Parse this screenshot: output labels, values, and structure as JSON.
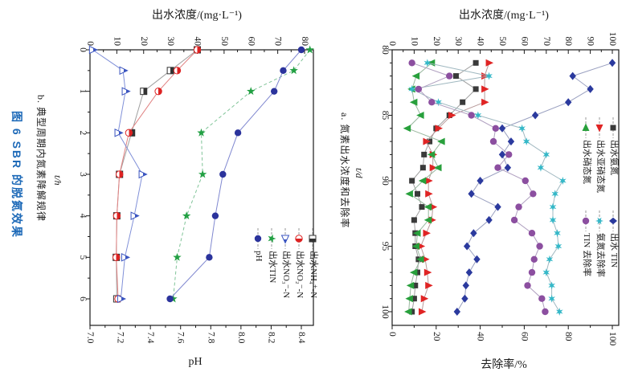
{
  "figure": {
    "caption_main": "图 6  SBR 的脱氮效果",
    "caption_a": "a. 氮素出水浓度和去除率",
    "caption_b": "b. 典型周期内氮素降解规律",
    "caption_color": "#1e6ab8",
    "axis_color": "#1a1a1a",
    "background": "#ffffff"
  },
  "chart_data": [
    {
      "id": "cycle",
      "type": "line",
      "title_top": "出水浓度/(mg·L⁻¹)",
      "xlabel_bottom": "pH",
      "ylabel": "t/h",
      "top_axis": {
        "label": "出水浓度/(mg·L⁻¹)",
        "min": 0,
        "max": 80,
        "ticks": [
          "0",
          "10",
          "20",
          "30",
          "40",
          "50",
          "60",
          "70",
          "80"
        ],
        "minor_step": 5
      },
      "bottom_axis": {
        "label": "pH",
        "min": 7.0,
        "max": 8.4,
        "ticks": [
          "7.0",
          "7.2",
          "7.4",
          "7.6",
          "7.8",
          "8.0",
          "8.2",
          "8.4"
        ],
        "minor_step": 0.1
      },
      "y_axis": {
        "label": "t/h",
        "min": 0,
        "max": 6,
        "ticks": [
          "0",
          "1",
          "2",
          "3",
          "4",
          "5",
          "6"
        ],
        "minor_step": 0.5,
        "direction": "down"
      },
      "t": [
        0,
        0.5,
        1,
        2,
        3,
        4,
        5,
        6
      ],
      "series": [
        {
          "key": "nh4",
          "name": "出水NH₄⁺-N",
          "axis": "top",
          "marker": "hsquare",
          "color": "#333333",
          "line_color": "#a0a0a0",
          "dash": "",
          "values": [
            40,
            30,
            20,
            15.5,
            11,
            10,
            9.8,
            10
          ]
        },
        {
          "key": "no2",
          "name": "出水NO₂⁻-N",
          "axis": "top",
          "marker": "hcircle",
          "color": "#dd2222",
          "line_color": "#e08080",
          "dash": "",
          "values": [
            40,
            32.5,
            25.5,
            14.5,
            11,
            10,
            9.8,
            10.5
          ]
        },
        {
          "key": "no3",
          "name": "出水NO₃⁻-N",
          "axis": "top",
          "marker": "htriangle",
          "color": "#3b55c0",
          "line_color": "#8090d8",
          "dash": "",
          "values": [
            1,
            12.3,
            13.2,
            10.5,
            19.5,
            16.5,
            13,
            11.5
          ]
        },
        {
          "key": "tin",
          "name": "出水TIN",
          "axis": "top",
          "marker": "star5",
          "color": "#22a043",
          "line_color": "#80c498",
          "dash": "4 3",
          "values": [
            82,
            76,
            60,
            41.5,
            42,
            36,
            32.5,
            31
          ]
        },
        {
          "key": "ph",
          "name": "pH",
          "axis": "bottom",
          "marker": "circle",
          "color": "#2b339c",
          "line_color": "#8088d0",
          "dash": "",
          "values": [
            8.4,
            8.28,
            8.22,
            7.98,
            7.88,
            7.83,
            7.79,
            7.53
          ]
        }
      ]
    },
    {
      "id": "longterm",
      "type": "line",
      "title_top": "出水浓度/(mg·L⁻¹)",
      "xlabel_bottom": "去除率/%",
      "ylabel": "t/d",
      "top_axis": {
        "label": "出水浓度/(mg·L⁻¹)",
        "min": 0,
        "max": 100,
        "ticks": [
          "0",
          "10",
          "20",
          "30",
          "40",
          "50",
          "60",
          "70",
          "80",
          "90",
          "100"
        ],
        "minor_step": 5
      },
      "bottom_axis": {
        "label": "去除率/%",
        "min": 0,
        "max": 100,
        "ticks": [
          "0",
          "20",
          "40",
          "60",
          "80",
          "100"
        ],
        "minor_step": 10
      },
      "y_axis": {
        "label": "t/d",
        "min": 80,
        "max": 100,
        "ticks": [
          "80",
          "85",
          "90",
          "95",
          "100"
        ],
        "minor_step": 1,
        "direction": "down"
      },
      "t": [
        81,
        82,
        83,
        84,
        85,
        86,
        87,
        88,
        89,
        90,
        91,
        92,
        93,
        94,
        95,
        96,
        97,
        98,
        99,
        100
      ],
      "series": [
        {
          "key": "nh3",
          "name": "出水氨氮",
          "axis": "top",
          "marker": "square",
          "color": "#3a3a3a",
          "line_color": "#a0a0a0",
          "dash": "",
          "values": [
            38,
            29,
            38,
            32,
            26,
            20,
            17,
            14.5,
            14,
            9,
            11.5,
            13.5,
            10,
            10.5,
            10.5,
            12,
            11.5,
            10.5,
            10,
            9
          ]
        },
        {
          "key": "no2e",
          "name": "出水亚硝态氮",
          "axis": "top",
          "marker": "tri_right",
          "color": "#e02424",
          "line_color": "#b89a9a",
          "dash": "",
          "values": [
            44,
            42,
            42,
            42,
            27,
            21,
            15.5,
            18.5,
            18.5,
            16.5,
            16.5,
            18.5,
            18,
            15.5,
            13,
            15,
            16,
            16.5,
            14.5,
            13.5
          ]
        },
        {
          "key": "no3e",
          "name": "出水硝态氮",
          "axis": "top",
          "marker": "tri_left",
          "color": "#28a03c",
          "line_color": "#9ab8a0",
          "dash": "",
          "values": [
            18,
            11,
            9,
            10,
            13,
            7,
            22.5,
            18,
            21,
            14,
            8,
            16.5,
            16.5,
            11.5,
            11,
            13,
            10,
            8.5,
            8,
            7.5
          ]
        },
        {
          "key": "tin_e",
          "name": "出水 TIN",
          "axis": "top",
          "marker": "diamond",
          "color": "#2b3a9e",
          "line_color": "#9aa0c0",
          "dash": "",
          "values": [
            100,
            82,
            90,
            80,
            65,
            50,
            54,
            50,
            52.5,
            40,
            36,
            48,
            44,
            37,
            34,
            38.5,
            35,
            33.5,
            33,
            29.5
          ]
        },
        {
          "key": "nh3_removal",
          "name": "氨氮去除率",
          "axis": "bottom",
          "marker": "star6",
          "color": "#35b8c8",
          "line_color": "#a0b8c0",
          "dash": "",
          "values": [
            16,
            44,
            9,
            21,
            39,
            59,
            61,
            70,
            67.5,
            77.5,
            74,
            73,
            73,
            75,
            75.5,
            71.5,
            70,
            72.5,
            72.5,
            76
          ]
        },
        {
          "key": "tin_removal",
          "name": "TIN 去除率",
          "axis": "bottom",
          "marker": "circle",
          "color": "#8c4fa0",
          "line_color": "#b0a0c0",
          "dash": "",
          "values": [
            9,
            26,
            12,
            18,
            36,
            47,
            46,
            53,
            48,
            60.5,
            64,
            57.5,
            55.5,
            63.5,
            67,
            64.5,
            63.5,
            61.5,
            68,
            69.5
          ]
        }
      ]
    }
  ]
}
